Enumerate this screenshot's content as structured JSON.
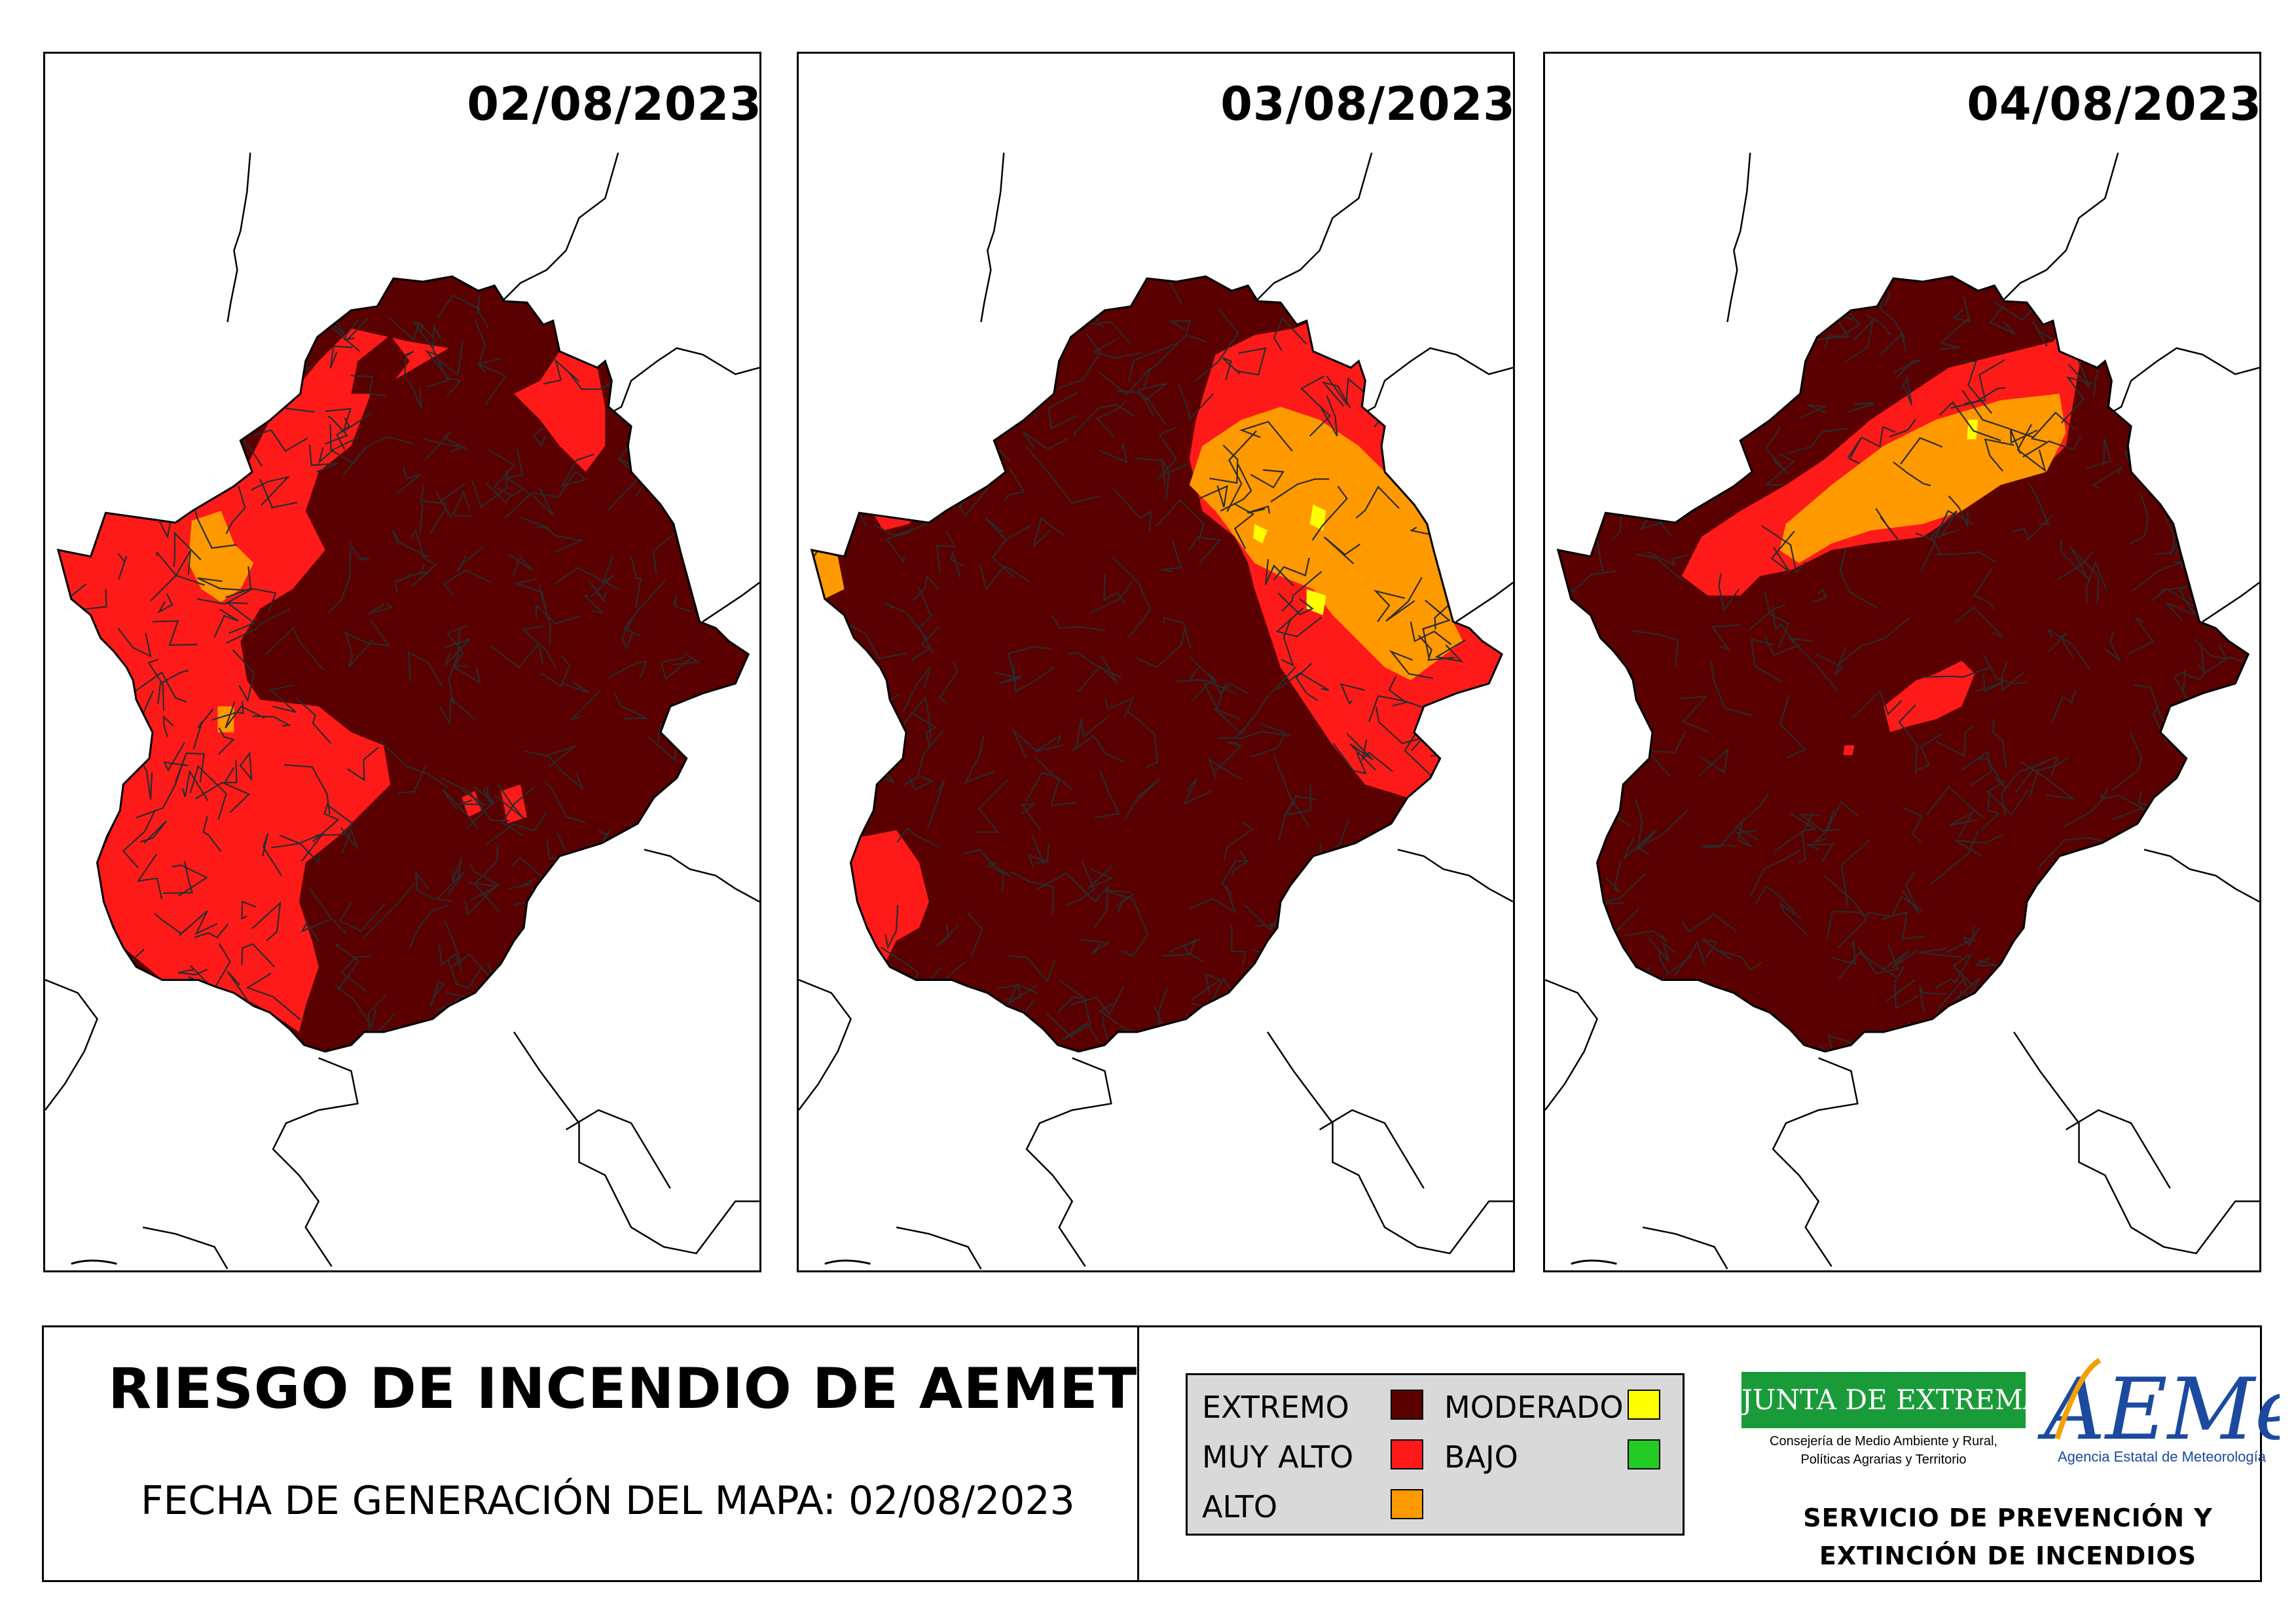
{
  "maps": [
    {
      "date": "02/08/2023"
    },
    {
      "date": "03/08/2023"
    },
    {
      "date": "04/08/2023"
    }
  ],
  "colors": {
    "extremo": "#5a0000",
    "muy_alto": "#ff1a1a",
    "alto": "#ff9900",
    "moderado": "#ffff00",
    "bajo": "#22cc22",
    "borders": "#2b2b2b"
  },
  "footer": {
    "title": "RIESGO DE INCENDIO DE AEMET",
    "subtitle": "FECHA DE GENERACIÓN DEL MAPA: 02/08/2023"
  },
  "legend": {
    "extremo": "EXTREMO",
    "muy_alto": "MUY ALTO",
    "alto": "ALTO",
    "moderado": "MODERADO",
    "bajo": "BAJO"
  },
  "logos": {
    "junta": "JUNTA DE EXTREMADURA",
    "consejeria_line1": "Consejería de Medio Ambiente y Rural,",
    "consejeria_line2": "Políticas Agrarias y Territorio",
    "aemet": "AEMet",
    "aemet_sub": "Agencia Estatal de Meteorología"
  },
  "service": {
    "line1": "SERVICIO DE PREVENCIÓN Y",
    "line2": "EXTINCIÓN DE INCENDIOS"
  }
}
